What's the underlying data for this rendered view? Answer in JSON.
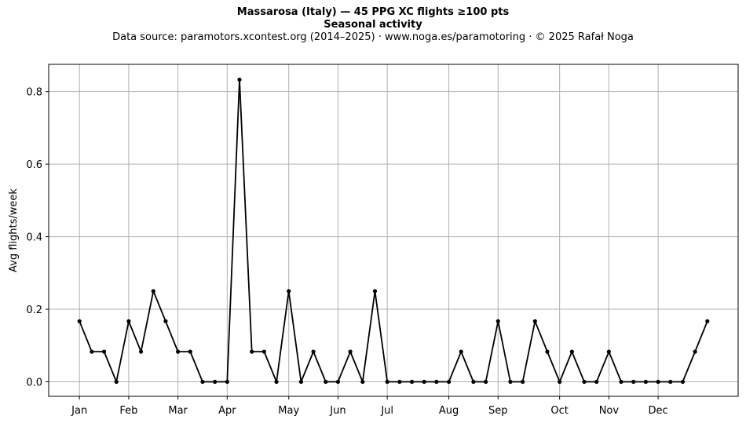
{
  "chart_data": {
    "type": "line",
    "title": "Massarosa (Italy)  —  45 PPG XC flights ≥100 pts",
    "subtitle": "Seasonal activity",
    "source_line": "Data source: paramotors.xcontest.org (2014–2025)  ·  www.noga.es/paramotoring  ·  © 2025 Rafał Noga",
    "xlabel": "",
    "ylabel": "Avg flights/week",
    "ylim": [
      -0.04,
      0.875
    ],
    "xlim": [
      -1.5,
      54.5
    ],
    "grid": true,
    "x_ticks": [
      {
        "label": "Jan",
        "week": 1
      },
      {
        "label": "Feb",
        "week": 5
      },
      {
        "label": "Mar",
        "week": 9
      },
      {
        "label": "Apr",
        "week": 13
      },
      {
        "label": "May",
        "week": 18
      },
      {
        "label": "Jun",
        "week": 22
      },
      {
        "label": "Jul",
        "week": 26
      },
      {
        "label": "Aug",
        "week": 31
      },
      {
        "label": "Sep",
        "week": 35
      },
      {
        "label": "Oct",
        "week": 40
      },
      {
        "label": "Nov",
        "week": 44
      },
      {
        "label": "Dec",
        "week": 48
      }
    ],
    "y_ticks": [
      "0.0",
      "0.2",
      "0.4",
      "0.6",
      "0.8"
    ],
    "y_tick_values": [
      0.0,
      0.2,
      0.4,
      0.6,
      0.8
    ],
    "line_color": "#000000",
    "grid_color": "#b0b0b0",
    "series": [
      {
        "x": [
          1,
          2,
          3,
          4,
          5,
          6,
          7,
          8,
          9,
          10,
          11,
          12,
          13,
          14,
          15,
          16,
          17,
          18,
          19,
          20,
          21,
          22,
          23,
          24,
          25,
          26,
          27,
          28,
          29,
          30,
          31,
          32,
          33,
          34,
          35,
          36,
          37,
          38,
          39,
          40,
          41,
          42,
          43,
          44,
          45,
          46,
          47,
          48,
          49,
          50,
          51,
          52
        ],
        "values": [
          0.167,
          0.083,
          0.083,
          0.0,
          0.167,
          0.083,
          0.25,
          0.167,
          0.083,
          0.083,
          0.0,
          0.0,
          0.0,
          0.833,
          0.083,
          0.083,
          0.0,
          0.25,
          0.0,
          0.083,
          0.0,
          0.0,
          0.083,
          0.0,
          0.25,
          0.0,
          0.0,
          0.0,
          0.0,
          0.0,
          0.0,
          0.083,
          0.0,
          0.0,
          0.167,
          0.0,
          0.0,
          0.167,
          0.083,
          0.0,
          0.083,
          0.0,
          0.0,
          0.083,
          0.0,
          0.0,
          0.0,
          0.0,
          0.0,
          0.0,
          0.083,
          0.167
        ]
      }
    ]
  }
}
